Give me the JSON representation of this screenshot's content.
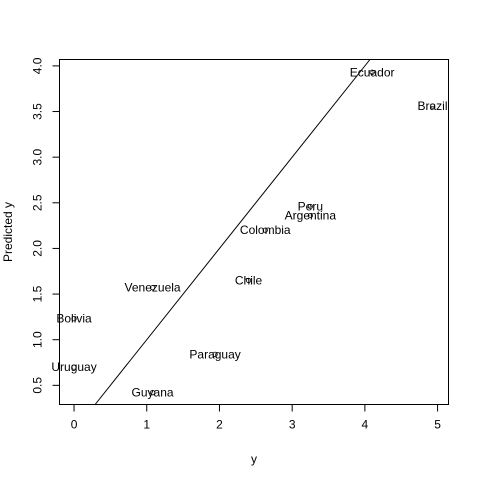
{
  "chart_data": {
    "type": "scatter",
    "title": "",
    "xlabel": "y",
    "ylabel": "Predicted y",
    "xlim": [
      -0.2,
      5.15
    ],
    "ylim": [
      0.29,
      4.07
    ],
    "xticks": [
      "0",
      "1",
      "2",
      "3",
      "4",
      "5"
    ],
    "yticks": [
      "0.5",
      "1.0",
      "1.5",
      "2.0",
      "2.5",
      "3.0",
      "3.5",
      "4.0"
    ],
    "grid": false,
    "legend": "none",
    "points": [
      {
        "label": "Ecuador",
        "x": 4.1,
        "y": 3.93
      },
      {
        "label": "Brazil",
        "x": 4.93,
        "y": 3.56
      },
      {
        "label": "Peru",
        "x": 3.25,
        "y": 2.46
      },
      {
        "label": "Argentina",
        "x": 3.25,
        "y": 2.36
      },
      {
        "label": "Colombia",
        "x": 2.63,
        "y": 2.2
      },
      {
        "label": "Chile",
        "x": 2.4,
        "y": 1.65
      },
      {
        "label": "Venezuela",
        "x": 1.08,
        "y": 1.57
      },
      {
        "label": "Bolivia",
        "x": 0.0,
        "y": 1.23
      },
      {
        "label": "Paraguay",
        "x": 1.94,
        "y": 0.84
      },
      {
        "label": "Uruguay",
        "x": 0.0,
        "y": 0.7
      },
      {
        "label": "Guyana",
        "x": 1.08,
        "y": 0.42
      }
    ],
    "reference_line": {
      "intercept": 0,
      "slope": 1
    }
  }
}
